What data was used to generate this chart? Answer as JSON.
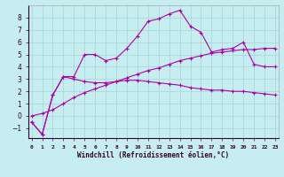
{
  "xlabel": "Windchill (Refroidissement éolien,°C)",
  "background_color": "#c6eef0",
  "grid_color": "#aad8db",
  "line_color": "#aa00aa",
  "x_hours": [
    0,
    1,
    2,
    3,
    4,
    5,
    6,
    7,
    8,
    9,
    10,
    11,
    12,
    13,
    14,
    15,
    16,
    17,
    18,
    19,
    20,
    21,
    22,
    23
  ],
  "temp_line": [
    -0.5,
    -1.5,
    1.7,
    3.2,
    3.2,
    5.0,
    5.0,
    4.5,
    4.7,
    5.5,
    6.5,
    7.7,
    7.9,
    8.3,
    8.6,
    7.3,
    6.8,
    5.2,
    5.4,
    5.5,
    6.0,
    4.2,
    4.0,
    4.0
  ],
  "windchill_line": [
    -0.5,
    -1.5,
    1.7,
    3.2,
    3.0,
    2.8,
    2.7,
    2.7,
    2.8,
    2.9,
    2.9,
    2.8,
    2.7,
    2.6,
    2.5,
    2.3,
    2.2,
    2.1,
    2.1,
    2.0,
    2.0,
    1.9,
    1.8,
    1.7
  ],
  "trend_line": [
    0.0,
    0.2,
    0.5,
    1.0,
    1.5,
    1.9,
    2.2,
    2.5,
    2.8,
    3.1,
    3.4,
    3.7,
    3.9,
    4.2,
    4.5,
    4.7,
    4.9,
    5.1,
    5.2,
    5.3,
    5.4,
    5.4,
    5.5,
    5.5
  ],
  "ylim": [
    -1.8,
    9.0
  ],
  "yticks": [
    -1,
    0,
    1,
    2,
    3,
    4,
    5,
    6,
    7,
    8
  ],
  "xlim": [
    -0.3,
    23.3
  ],
  "xticks": [
    0,
    1,
    2,
    3,
    4,
    5,
    6,
    7,
    8,
    9,
    10,
    11,
    12,
    13,
    14,
    15,
    16,
    17,
    18,
    19,
    20,
    21,
    22,
    23
  ],
  "xtick_labels": [
    "0",
    "1",
    "2",
    "3",
    "4",
    "5",
    "6",
    "7",
    "8",
    "9",
    "10",
    "11",
    "12",
    "13",
    "14",
    "15",
    "16",
    "17",
    "18",
    "19",
    "20",
    "21",
    "22",
    "23"
  ]
}
